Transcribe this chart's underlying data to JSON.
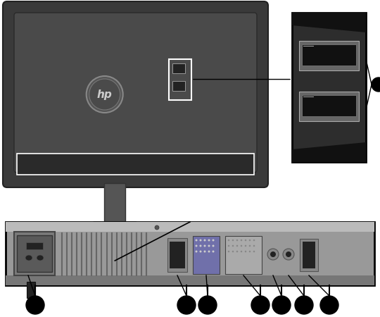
{
  "bg_color": "#ffffff",
  "monitor_outer_color": "#3a3a3a",
  "monitor_inner_color": "#5a5a5a",
  "monitor_panel_color": "#4a4a4a",
  "stand_color": "#555555",
  "stand_dark": "#333333",
  "usb_panel_border": "#000000",
  "usb_panel_bg": "#3a3a3a",
  "usb_panel_side_dark": "#1a1a1a",
  "usb_port_bg": "#555555",
  "usb_port_hole": "#111111",
  "line_color": "#000000",
  "bullet_color": "#000000",
  "bottom_panel_bg": "#999999",
  "bottom_panel_light": "#bbbbbb",
  "bottom_panel_dark": "#777777",
  "power_outer": "#707070",
  "power_inner": "#555555",
  "vent_color": "#666666",
  "highlight_white": "#ffffff",
  "connector_dp_color": "#888888",
  "connector_vga_color": "#7070aa",
  "connector_dvi_color": "#aaaaaa",
  "connector_audio_color": "#888888",
  "connector_usbb_color": "#888888"
}
